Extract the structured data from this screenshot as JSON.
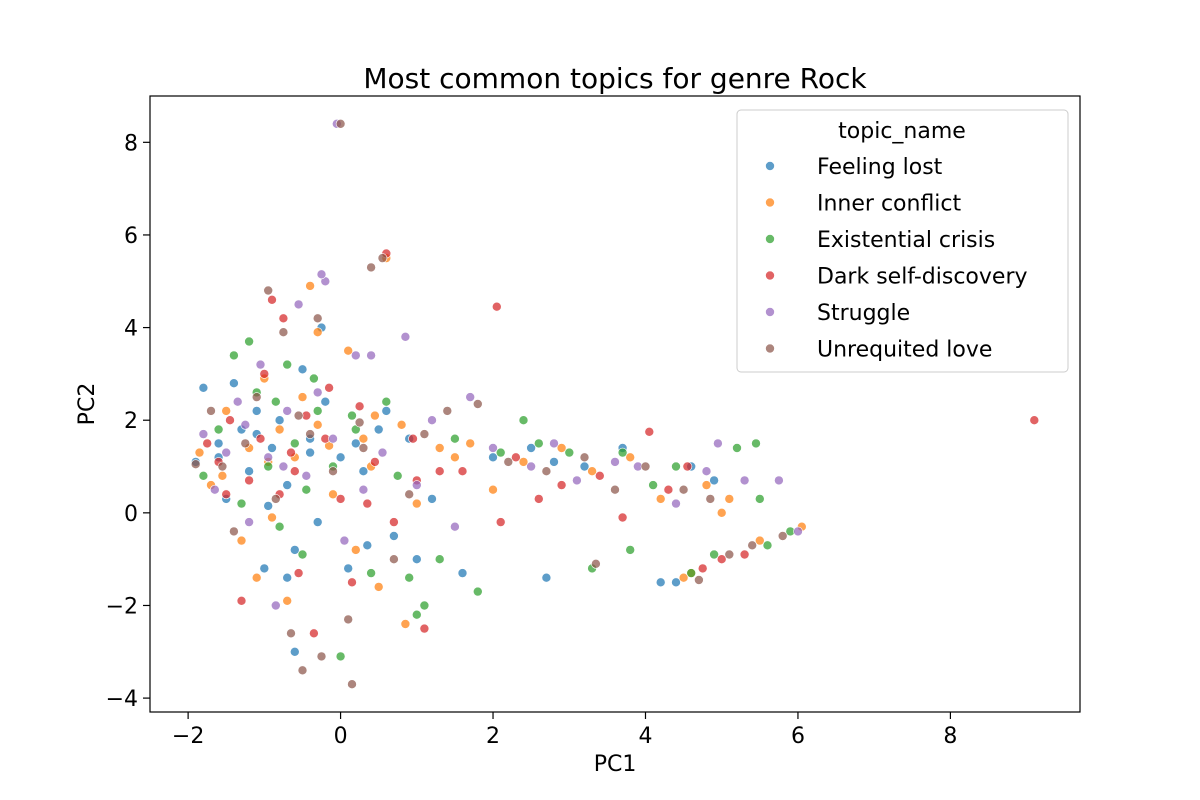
{
  "chart_data": {
    "type": "scatter",
    "title": "Most common topics for genre Rock",
    "xlabel": "PC1",
    "ylabel": "PC2",
    "xlim": [
      -2.5,
      9.7
    ],
    "ylim": [
      -4.3,
      9.0
    ],
    "xticks": [
      -2,
      0,
      2,
      4,
      6,
      8
    ],
    "yticks": [
      -4,
      -2,
      0,
      2,
      4,
      6,
      8
    ],
    "xtick_labels": [
      "−2",
      "0",
      "2",
      "4",
      "6",
      "8"
    ],
    "ytick_labels": [
      "−4",
      "−2",
      "0",
      "2",
      "4",
      "6",
      "8"
    ],
    "grid": false,
    "legend": {
      "title": "topic_name",
      "position": "top-right"
    },
    "series": [
      {
        "name": "Feeling lost",
        "color": "#1f77b4",
        "points": [
          [
            -1.9,
            1.1
          ],
          [
            -1.8,
            2.7
          ],
          [
            -1.6,
            1.5
          ],
          [
            -1.5,
            0.3
          ],
          [
            -1.3,
            1.8
          ],
          [
            -1.2,
            0.9
          ],
          [
            -1.1,
            2.2
          ],
          [
            -1.0,
            -1.2
          ],
          [
            -0.9,
            1.4
          ],
          [
            -0.8,
            2.0
          ],
          [
            -0.7,
            0.6
          ],
          [
            -0.6,
            -0.8
          ],
          [
            -0.5,
            3.1
          ],
          [
            -0.4,
            1.6
          ],
          [
            -0.3,
            -0.2
          ],
          [
            -0.2,
            2.4
          ],
          [
            0.0,
            1.2
          ],
          [
            0.1,
            -1.2
          ],
          [
            0.3,
            0.9
          ],
          [
            0.5,
            1.8
          ],
          [
            0.7,
            -0.5
          ],
          [
            0.9,
            1.6
          ],
          [
            1.2,
            0.3
          ],
          [
            1.6,
            -1.3
          ],
          [
            2.0,
            1.2
          ],
          [
            2.5,
            1.4
          ],
          [
            2.8,
            1.1
          ],
          [
            3.2,
            1.0
          ],
          [
            3.7,
            1.4
          ],
          [
            4.2,
            -1.5
          ],
          [
            4.4,
            -1.5
          ],
          [
            4.6,
            1.0
          ],
          [
            4.9,
            0.7
          ],
          [
            -1.4,
            2.8
          ],
          [
            -0.95,
            0.15
          ],
          [
            -0.7,
            -1.4
          ],
          [
            -0.25,
            4.0
          ],
          [
            0.35,
            -0.7
          ],
          [
            0.6,
            2.2
          ],
          [
            1.0,
            -1.0
          ],
          [
            -0.6,
            -3.0
          ],
          [
            2.7,
            -1.4
          ],
          [
            -1.6,
            1.2
          ],
          [
            -1.1,
            1.7
          ],
          [
            -0.4,
            1.3
          ],
          [
            0.2,
            1.5
          ]
        ]
      },
      {
        "name": "Inner conflict",
        "color": "#ff7f0e",
        "points": [
          [
            -1.85,
            1.3
          ],
          [
            -1.7,
            0.6
          ],
          [
            -1.5,
            2.2
          ],
          [
            -1.3,
            -0.6
          ],
          [
            -1.2,
            1.4
          ],
          [
            -1.0,
            2.9
          ],
          [
            -0.9,
            -0.1
          ],
          [
            -0.8,
            1.8
          ],
          [
            -0.7,
            -1.9
          ],
          [
            -0.6,
            1.2
          ],
          [
            -0.4,
            4.9
          ],
          [
            -0.3,
            1.9
          ],
          [
            -0.1,
            0.4
          ],
          [
            0.1,
            3.5
          ],
          [
            0.3,
            1.6
          ],
          [
            0.5,
            -1.6
          ],
          [
            0.6,
            5.5
          ],
          [
            0.8,
            1.9
          ],
          [
            1.0,
            0.2
          ],
          [
            1.3,
            1.4
          ],
          [
            1.7,
            1.5
          ],
          [
            2.0,
            0.5
          ],
          [
            2.4,
            1.1
          ],
          [
            2.9,
            1.4
          ],
          [
            3.3,
            0.9
          ],
          [
            3.8,
            1.2
          ],
          [
            4.2,
            0.3
          ],
          [
            4.5,
            -1.4
          ],
          [
            4.8,
            0.6
          ],
          [
            5.1,
            0.3
          ],
          [
            5.5,
            -0.6
          ],
          [
            6.05,
            -0.3
          ],
          [
            -1.1,
            -1.4
          ],
          [
            -0.5,
            2.5
          ],
          [
            -0.3,
            3.9
          ],
          [
            0.2,
            -0.8
          ],
          [
            0.45,
            2.1
          ],
          [
            0.85,
            -2.4
          ],
          [
            1.5,
            1.2
          ],
          [
            -1.55,
            0.8
          ],
          [
            -0.95,
            1.1
          ],
          [
            -0.15,
            1.45
          ],
          [
            0.4,
            1.0
          ],
          [
            4.6,
            -1.3
          ],
          [
            5.0,
            0.0
          ]
        ]
      },
      {
        "name": "Existential crisis",
        "color": "#2ca02c",
        "points": [
          [
            -1.8,
            0.8
          ],
          [
            -1.6,
            1.8
          ],
          [
            -1.4,
            3.4
          ],
          [
            -1.3,
            0.2
          ],
          [
            -1.1,
            2.6
          ],
          [
            -0.95,
            1.0
          ],
          [
            -0.8,
            -0.3
          ],
          [
            -0.7,
            3.2
          ],
          [
            -0.6,
            1.5
          ],
          [
            -0.5,
            -0.9
          ],
          [
            -0.3,
            2.2
          ],
          [
            -0.1,
            1.0
          ],
          [
            0.0,
            -3.1
          ],
          [
            0.2,
            1.8
          ],
          [
            0.4,
            -1.3
          ],
          [
            0.6,
            2.4
          ],
          [
            0.9,
            -1.4
          ],
          [
            1.1,
            -2.0
          ],
          [
            1.3,
            -1.0
          ],
          [
            1.5,
            1.6
          ],
          [
            1.8,
            -1.7
          ],
          [
            2.1,
            1.3
          ],
          [
            2.4,
            2.0
          ],
          [
            2.6,
            1.5
          ],
          [
            3.0,
            1.3
          ],
          [
            3.3,
            -1.2
          ],
          [
            3.7,
            1.3
          ],
          [
            3.8,
            -0.8
          ],
          [
            4.1,
            0.6
          ],
          [
            4.4,
            1.0
          ],
          [
            4.6,
            -1.3
          ],
          [
            4.9,
            -0.9
          ],
          [
            5.2,
            1.4
          ],
          [
            5.45,
            1.5
          ],
          [
            5.5,
            0.3
          ],
          [
            5.6,
            -0.7
          ],
          [
            5.9,
            -0.4
          ],
          [
            -0.35,
            2.9
          ],
          [
            0.75,
            0.8
          ],
          [
            1.0,
            -2.2
          ],
          [
            -1.2,
            3.7
          ],
          [
            -0.85,
            2.4
          ],
          [
            -0.45,
            0.5
          ],
          [
            0.15,
            2.1
          ]
        ]
      },
      {
        "name": "Dark self-discovery",
        "color": "#d62728",
        "points": [
          [
            -1.75,
            1.5
          ],
          [
            -1.6,
            1.1
          ],
          [
            -1.45,
            2.0
          ],
          [
            -1.3,
            -1.9
          ],
          [
            -1.2,
            0.7
          ],
          [
            -1.05,
            1.6
          ],
          [
            -0.9,
            4.6
          ],
          [
            -0.8,
            0.4
          ],
          [
            -0.75,
            4.2
          ],
          [
            -0.65,
            1.3
          ],
          [
            -0.55,
            -1.3
          ],
          [
            -0.45,
            2.1
          ],
          [
            -0.35,
            -2.6
          ],
          [
            -0.2,
            1.6
          ],
          [
            0.0,
            0.3
          ],
          [
            0.15,
            -1.5
          ],
          [
            0.25,
            2.3
          ],
          [
            0.45,
            1.1
          ],
          [
            0.7,
            -0.2
          ],
          [
            0.95,
            1.6
          ],
          [
            1.1,
            -2.5
          ],
          [
            1.3,
            0.9
          ],
          [
            1.6,
            0.9
          ],
          [
            2.05,
            4.45
          ],
          [
            2.1,
            -0.2
          ],
          [
            2.3,
            1.2
          ],
          [
            2.6,
            0.3
          ],
          [
            2.9,
            0.6
          ],
          [
            3.4,
            0.8
          ],
          [
            3.7,
            -0.1
          ],
          [
            4.05,
            1.75
          ],
          [
            4.3,
            0.5
          ],
          [
            4.55,
            1.0
          ],
          [
            4.75,
            -1.2
          ],
          [
            5.0,
            -1.0
          ],
          [
            5.3,
            -0.9
          ],
          [
            9.1,
            2.0
          ],
          [
            -1.0,
            3.0
          ],
          [
            -0.15,
            2.7
          ],
          [
            0.6,
            5.6
          ],
          [
            1.0,
            0.7
          ],
          [
            -1.5,
            0.4
          ],
          [
            -0.6,
            0.9
          ],
          [
            0.35,
            0.2
          ]
        ]
      },
      {
        "name": "Struggle",
        "color": "#9467bd",
        "points": [
          [
            -1.8,
            1.7
          ],
          [
            -1.65,
            0.5
          ],
          [
            -1.5,
            1.3
          ],
          [
            -1.35,
            2.4
          ],
          [
            -1.2,
            -0.2
          ],
          [
            -1.05,
            3.2
          ],
          [
            -0.95,
            1.2
          ],
          [
            -0.85,
            -2.0
          ],
          [
            -0.7,
            2.2
          ],
          [
            -0.55,
            4.5
          ],
          [
            -0.45,
            0.8
          ],
          [
            -0.3,
            2.6
          ],
          [
            -0.2,
            5.0
          ],
          [
            -0.1,
            1.6
          ],
          [
            0.05,
            -0.6
          ],
          [
            0.2,
            3.4
          ],
          [
            0.4,
            3.4
          ],
          [
            0.55,
            1.3
          ],
          [
            0.85,
            3.8
          ],
          [
            1.0,
            0.6
          ],
          [
            1.2,
            2.0
          ],
          [
            1.5,
            -0.3
          ],
          [
            1.7,
            2.5
          ],
          [
            2.0,
            1.4
          ],
          [
            2.5,
            1.0
          ],
          [
            2.8,
            1.5
          ],
          [
            3.1,
            0.7
          ],
          [
            3.6,
            1.1
          ],
          [
            3.9,
            1.0
          ],
          [
            4.4,
            0.2
          ],
          [
            4.8,
            0.9
          ],
          [
            5.3,
            0.7
          ],
          [
            5.75,
            0.7
          ],
          [
            6.0,
            -0.4
          ],
          [
            4.95,
            1.5
          ],
          [
            -0.25,
            5.15
          ],
          [
            -0.75,
            1.0
          ],
          [
            0.3,
            0.5
          ],
          [
            -1.25,
            1.9
          ],
          [
            -0.05,
            8.4
          ]
        ]
      },
      {
        "name": "Unrequited love",
        "color": "#8c564b",
        "points": [
          [
            -1.9,
            1.05
          ],
          [
            -1.7,
            2.2
          ],
          [
            -1.55,
            1.0
          ],
          [
            -1.4,
            -0.4
          ],
          [
            -1.25,
            1.5
          ],
          [
            -1.1,
            2.5
          ],
          [
            -0.95,
            4.8
          ],
          [
            -0.85,
            0.3
          ],
          [
            -0.75,
            3.9
          ],
          [
            -0.65,
            -2.6
          ],
          [
            -0.5,
            -3.4
          ],
          [
            -0.4,
            1.7
          ],
          [
            -0.3,
            4.2
          ],
          [
            -0.25,
            -3.1
          ],
          [
            -0.1,
            0.9
          ],
          [
            0.0,
            8.4
          ],
          [
            0.1,
            -2.3
          ],
          [
            0.15,
            -3.7
          ],
          [
            0.3,
            1.4
          ],
          [
            0.4,
            5.3
          ],
          [
            0.55,
            5.5
          ],
          [
            0.7,
            -1.0
          ],
          [
            0.9,
            0.4
          ],
          [
            1.1,
            1.7
          ],
          [
            1.4,
            2.2
          ],
          [
            1.8,
            2.35
          ],
          [
            2.2,
            1.1
          ],
          [
            2.7,
            0.9
          ],
          [
            3.2,
            1.2
          ],
          [
            3.35,
            -1.1
          ],
          [
            3.6,
            0.5
          ],
          [
            4.0,
            1.0
          ],
          [
            4.5,
            0.5
          ],
          [
            4.7,
            -1.45
          ],
          [
            4.85,
            0.3
          ],
          [
            5.1,
            -0.9
          ],
          [
            5.4,
            -0.7
          ],
          [
            5.8,
            -0.5
          ],
          [
            -0.55,
            2.1
          ],
          [
            0.25,
            1.95
          ]
        ]
      }
    ]
  }
}
